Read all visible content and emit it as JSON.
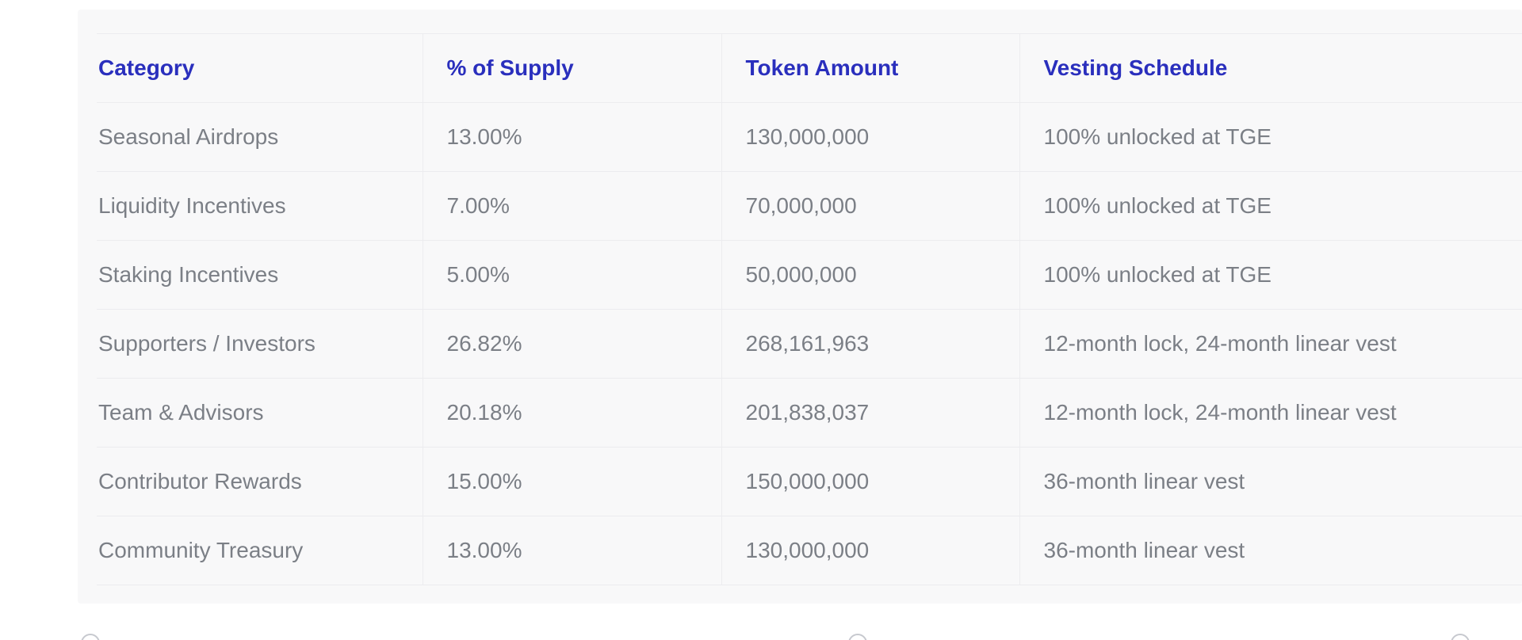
{
  "table": {
    "headers": [
      "Category",
      "% of Supply",
      "Token Amount",
      "Vesting Schedule"
    ],
    "rows": [
      {
        "category": "Seasonal Airdrops",
        "percent": "13.00%",
        "amount": "130,000,000",
        "vesting": "100% unlocked at TGE"
      },
      {
        "category": "Liquidity Incentives",
        "percent": "7.00%",
        "amount": "70,000,000",
        "vesting": "100% unlocked at TGE"
      },
      {
        "category": "Staking Incentives",
        "percent": "5.00%",
        "amount": "50,000,000",
        "vesting": "100% unlocked at TGE"
      },
      {
        "category": "Supporters / Investors",
        "percent": "26.82%",
        "amount": "268,161,963",
        "vesting": "12-month lock, 24-month linear vest"
      },
      {
        "category": "Team & Advisors",
        "percent": "20.18%",
        "amount": "201,838,037",
        "vesting": "12-month lock, 24-month linear vest"
      },
      {
        "category": "Contributor Rewards",
        "percent": "15.00%",
        "amount": "150,000,000",
        "vesting": "36-month linear vest"
      },
      {
        "category": "Community Treasury",
        "percent": "13.00%",
        "amount": "130,000,000",
        "vesting": "36-month linear vest"
      }
    ]
  },
  "colors": {
    "header_text": "#2a2fbd",
    "body_text": "#7b7f86",
    "panel_bg": "#f8f8f9",
    "grid": "#ececef"
  }
}
